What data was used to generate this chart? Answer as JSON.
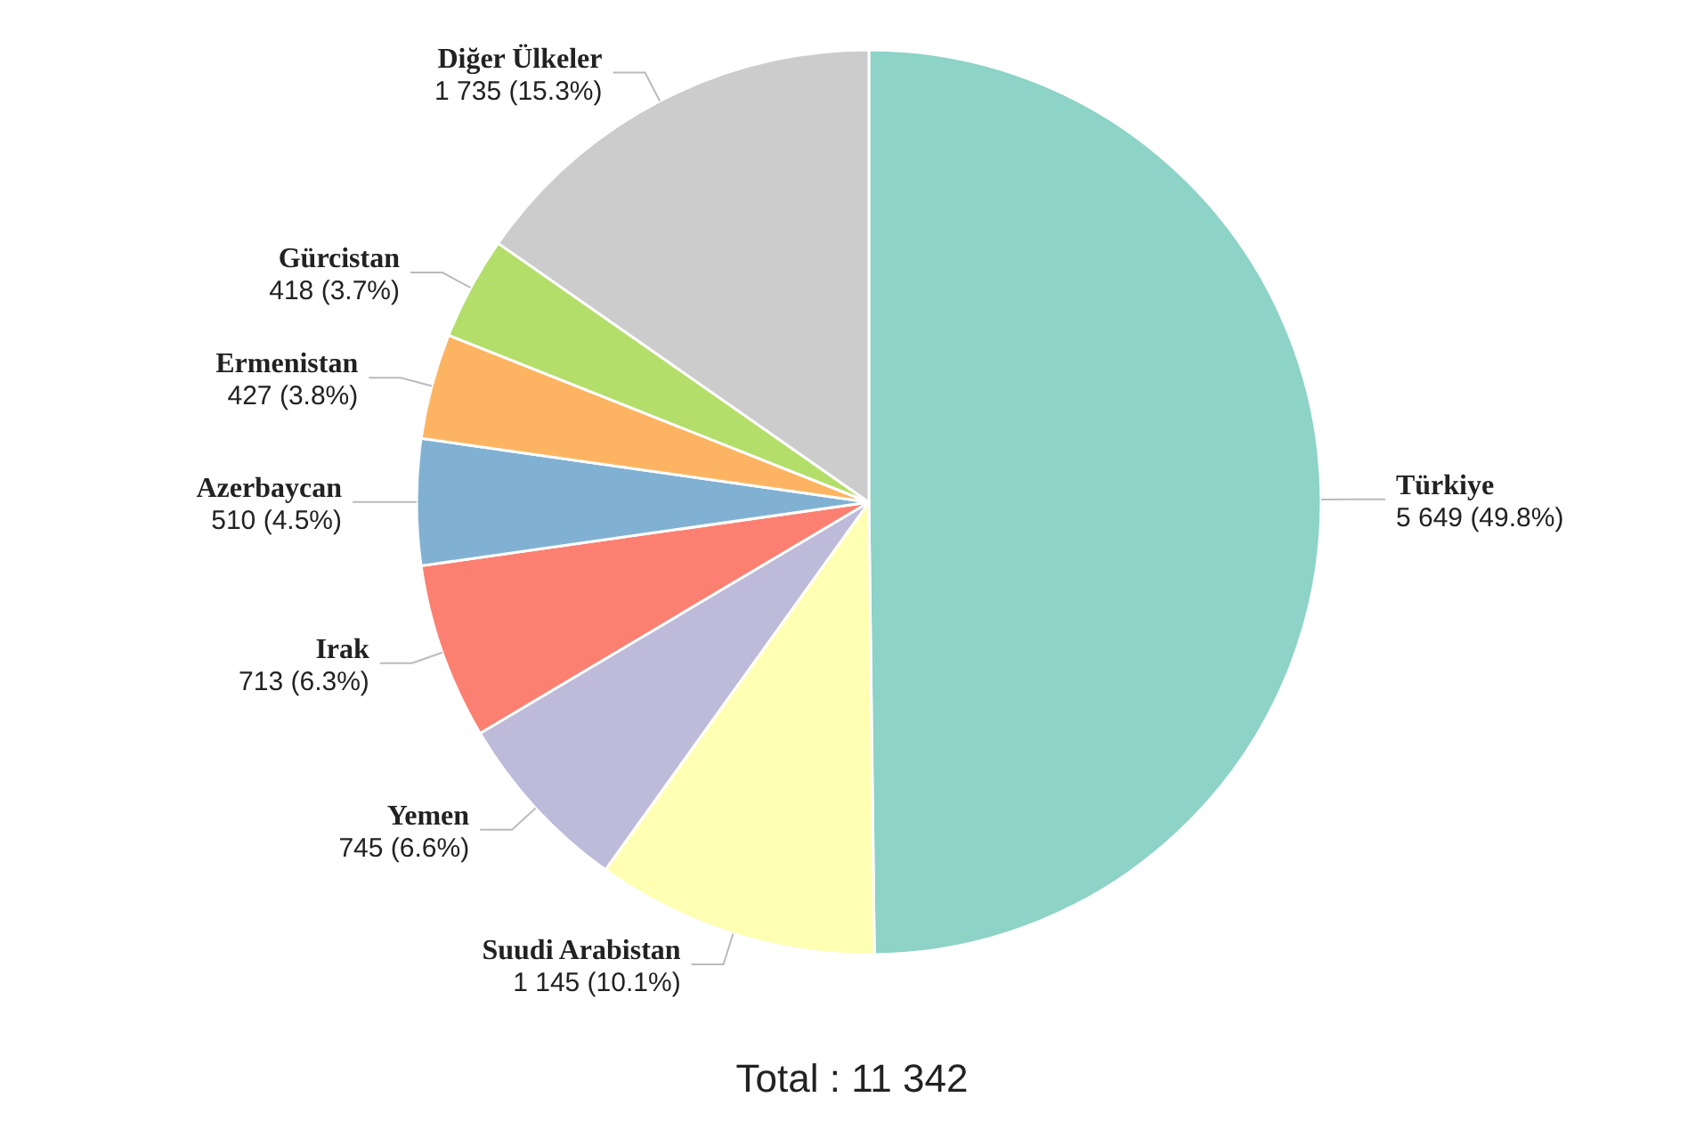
{
  "chart_data": {
    "type": "pie",
    "categories": [
      "Türkiye",
      "Suudi Arabistan",
      "Yemen",
      "Irak",
      "Azerbaycan",
      "Ermenistan",
      "Gürcistan",
      "Diğer Ülkeler"
    ],
    "values": [
      5649,
      1145,
      745,
      713,
      510,
      427,
      418,
      1735
    ],
    "value_labels": [
      "5 649 (49.8%)",
      "1 145 (10.1%)",
      "745 (6.6%)",
      "713 (6.3%)",
      "510 (4.5%)",
      "427 (3.8%)",
      "418 (3.7%)",
      "1 735 (15.3%)"
    ],
    "colors": [
      "#8dd3c7",
      "#ffffb3",
      "#bebada",
      "#fb8072",
      "#80b1d3",
      "#fdb462",
      "#b3de69",
      "#cccccc"
    ],
    "legend": false,
    "annotations": [
      "Total : 11 342"
    ]
  }
}
